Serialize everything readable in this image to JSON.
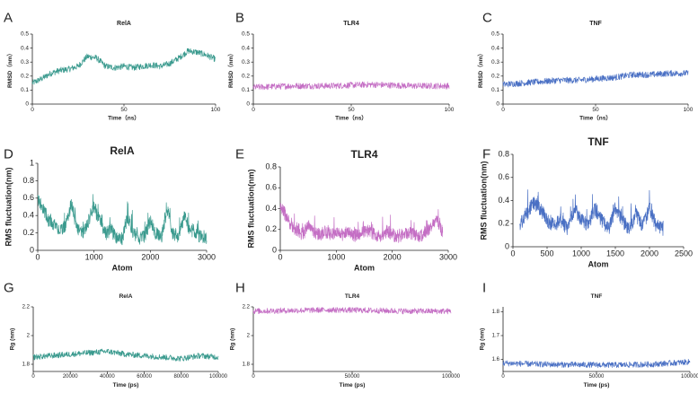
{
  "colors": {
    "RelA": "#3a9a8e",
    "TLR4": "#c46ec4",
    "TNF": "#4a70c4"
  },
  "chart_data": [
    {
      "id": "A",
      "type": "line",
      "title": "RelA",
      "xlabel": "Time（ns）",
      "ylabel": "RMSD（nm）",
      "xlim": [
        0,
        100
      ],
      "ylim": [
        0,
        0.5
      ],
      "xticks": [
        0,
        50,
        100
      ],
      "yticks": [
        0,
        0.1,
        0.2,
        0.3,
        0.4,
        0.5
      ],
      "series": [
        {
          "name": "RelA",
          "color_key": "RelA",
          "x": [
            0,
            5,
            10,
            15,
            20,
            25,
            30,
            35,
            40,
            45,
            50,
            55,
            60,
            65,
            70,
            75,
            80,
            85,
            90,
            95,
            100
          ],
          "values": [
            0.15,
            0.18,
            0.22,
            0.24,
            0.25,
            0.27,
            0.34,
            0.33,
            0.27,
            0.26,
            0.27,
            0.26,
            0.27,
            0.28,
            0.27,
            0.29,
            0.33,
            0.38,
            0.37,
            0.35,
            0.32
          ]
        }
      ]
    },
    {
      "id": "B",
      "type": "line",
      "title": "TLR4",
      "xlabel": "Time（ns）",
      "ylabel": "RMSD（nm）",
      "xlim": [
        0,
        100
      ],
      "ylim": [
        0,
        0.5
      ],
      "xticks": [
        0,
        50,
        100
      ],
      "yticks": [
        0,
        0.1,
        0.2,
        0.3,
        0.4,
        0.5
      ],
      "series": [
        {
          "name": "TLR4",
          "color_key": "TLR4",
          "x": [
            0,
            10,
            20,
            30,
            40,
            50,
            60,
            70,
            80,
            90,
            100
          ],
          "values": [
            0.12,
            0.125,
            0.13,
            0.13,
            0.13,
            0.135,
            0.14,
            0.135,
            0.13,
            0.13,
            0.13
          ]
        }
      ]
    },
    {
      "id": "C",
      "type": "line",
      "title": "TNF",
      "xlabel": "Time（ns）",
      "ylabel": "RMSD（nm）",
      "xlim": [
        0,
        100
      ],
      "ylim": [
        0,
        0.5
      ],
      "xticks": [
        0,
        50,
        100
      ],
      "yticks": [
        0,
        0.1,
        0.2,
        0.3,
        0.4,
        0.5
      ],
      "series": [
        {
          "name": "TNF",
          "color_key": "TNF",
          "x": [
            0,
            10,
            20,
            30,
            40,
            50,
            60,
            70,
            80,
            90,
            100
          ],
          "values": [
            0.14,
            0.15,
            0.16,
            0.17,
            0.17,
            0.18,
            0.19,
            0.21,
            0.21,
            0.22,
            0.22
          ]
        }
      ]
    },
    {
      "id": "D",
      "type": "line",
      "title": "RelA",
      "xlabel": "Atom",
      "ylabel": "RMS fluctuation(nm)",
      "xlim": [
        0,
        3000
      ],
      "ylim": [
        0,
        1.0
      ],
      "xticks": [
        0,
        1000,
        2000,
        3000
      ],
      "yticks": [
        0,
        0.2,
        0.4,
        0.6,
        0.8,
        1.0
      ],
      "series": [
        {
          "name": "RelA",
          "color_key": "RelA",
          "x": [
            0,
            100,
            200,
            300,
            400,
            500,
            600,
            700,
            800,
            900,
            1000,
            1100,
            1200,
            1300,
            1400,
            1500,
            1600,
            1700,
            1800,
            1900,
            2000,
            2100,
            2200,
            2300,
            2400,
            2500,
            2600,
            2700,
            2800,
            2900,
            3000
          ],
          "values": [
            0.55,
            0.45,
            0.3,
            0.25,
            0.2,
            0.25,
            0.5,
            0.2,
            0.15,
            0.3,
            0.45,
            0.3,
            0.15,
            0.2,
            0.1,
            0.1,
            0.35,
            0.15,
            0.1,
            0.12,
            0.3,
            0.15,
            0.12,
            0.45,
            0.15,
            0.1,
            0.35,
            0.2,
            0.15,
            0.12,
            0.08
          ]
        }
      ]
    },
    {
      "id": "E",
      "type": "line",
      "title": "TLR4",
      "xlabel": "Atom",
      "ylabel": "RMS fluctuation(nm)",
      "xlim": [
        0,
        3000
      ],
      "ylim": [
        0,
        0.8
      ],
      "xticks": [
        0,
        1000,
        2000,
        3000
      ],
      "yticks": [
        0,
        0.2,
        0.4,
        0.6,
        0.8
      ],
      "series": [
        {
          "name": "TLR4",
          "color_key": "TLR4",
          "x": [
            0,
            100,
            200,
            300,
            400,
            500,
            600,
            700,
            800,
            900,
            1000,
            1100,
            1200,
            1300,
            1400,
            1500,
            1600,
            1700,
            1800,
            1900,
            2000,
            2100,
            2200,
            2300,
            2400,
            2500,
            2600,
            2700,
            2800,
            2900
          ],
          "values": [
            0.4,
            0.3,
            0.2,
            0.15,
            0.12,
            0.2,
            0.15,
            0.12,
            0.15,
            0.12,
            0.14,
            0.12,
            0.15,
            0.1,
            0.12,
            0.14,
            0.15,
            0.12,
            0.1,
            0.15,
            0.12,
            0.1,
            0.12,
            0.14,
            0.12,
            0.1,
            0.15,
            0.2,
            0.25,
            0.15
          ]
        }
      ]
    },
    {
      "id": "F",
      "type": "line",
      "title": "TNF",
      "xlabel": "Atom",
      "ylabel": "RMS fluctuation(nm)",
      "xlim": [
        0,
        2500
      ],
      "ylim": [
        0,
        0.8
      ],
      "xticks": [
        0,
        500,
        1000,
        1500,
        2000,
        2500
      ],
      "yticks": [
        0,
        0.2,
        0.4,
        0.6,
        0.8
      ],
      "series": [
        {
          "name": "TNF",
          "color_key": "TNF",
          "x": [
            100,
            200,
            300,
            400,
            500,
            600,
            700,
            800,
            900,
            1000,
            1100,
            1200,
            1300,
            1400,
            1500,
            1600,
            1700,
            1800,
            1900,
            2000,
            2100,
            2200
          ],
          "values": [
            0.15,
            0.25,
            0.35,
            0.3,
            0.2,
            0.15,
            0.2,
            0.12,
            0.3,
            0.2,
            0.15,
            0.3,
            0.2,
            0.12,
            0.3,
            0.2,
            0.12,
            0.25,
            0.15,
            0.3,
            0.15,
            0.12
          ]
        }
      ]
    },
    {
      "id": "G",
      "type": "line",
      "title": "RelA",
      "xlabel": "Time (ps)",
      "ylabel": "Rg (nm)",
      "xlim": [
        0,
        100000
      ],
      "ylim": [
        1.75,
        2.2
      ],
      "xticks": [
        0,
        20000,
        40000,
        60000,
        80000,
        100000
      ],
      "yticks": [
        1.8,
        2.0,
        2.2
      ],
      "series": [
        {
          "name": "RelA",
          "color_key": "RelA",
          "x": [
            0,
            10000,
            20000,
            30000,
            40000,
            50000,
            60000,
            70000,
            80000,
            90000,
            100000
          ],
          "values": [
            1.85,
            1.86,
            1.87,
            1.88,
            1.89,
            1.87,
            1.86,
            1.85,
            1.84,
            1.86,
            1.85
          ]
        }
      ]
    },
    {
      "id": "H",
      "type": "line",
      "title": "TLR4",
      "xlabel": "Time (ps)",
      "ylabel": "Rg (nm)",
      "xlim": [
        0,
        100000
      ],
      "ylim": [
        1.75,
        2.2
      ],
      "xticks": [
        0,
        50000,
        100000
      ],
      "yticks": [
        1.8,
        2.0,
        2.2
      ],
      "series": [
        {
          "name": "TLR4",
          "color_key": "TLR4",
          "x": [
            0,
            20000,
            40000,
            60000,
            80000,
            100000
          ],
          "values": [
            2.17,
            2.175,
            2.18,
            2.175,
            2.17,
            2.17
          ]
        }
      ]
    },
    {
      "id": "I",
      "type": "line",
      "title": "TNF",
      "xlabel": "Time (ps)",
      "ylabel": "Rg (nm)",
      "xlim": [
        0,
        100000
      ],
      "ylim": [
        1.55,
        1.82
      ],
      "xticks": [
        0,
        50000,
        100000
      ],
      "yticks": [
        1.6,
        1.7,
        1.8
      ],
      "series": [
        {
          "name": "TNF",
          "color_key": "TNF",
          "x": [
            0,
            20000,
            40000,
            60000,
            80000,
            100000
          ],
          "values": [
            1.585,
            1.58,
            1.578,
            1.577,
            1.58,
            1.59
          ]
        }
      ]
    }
  ]
}
